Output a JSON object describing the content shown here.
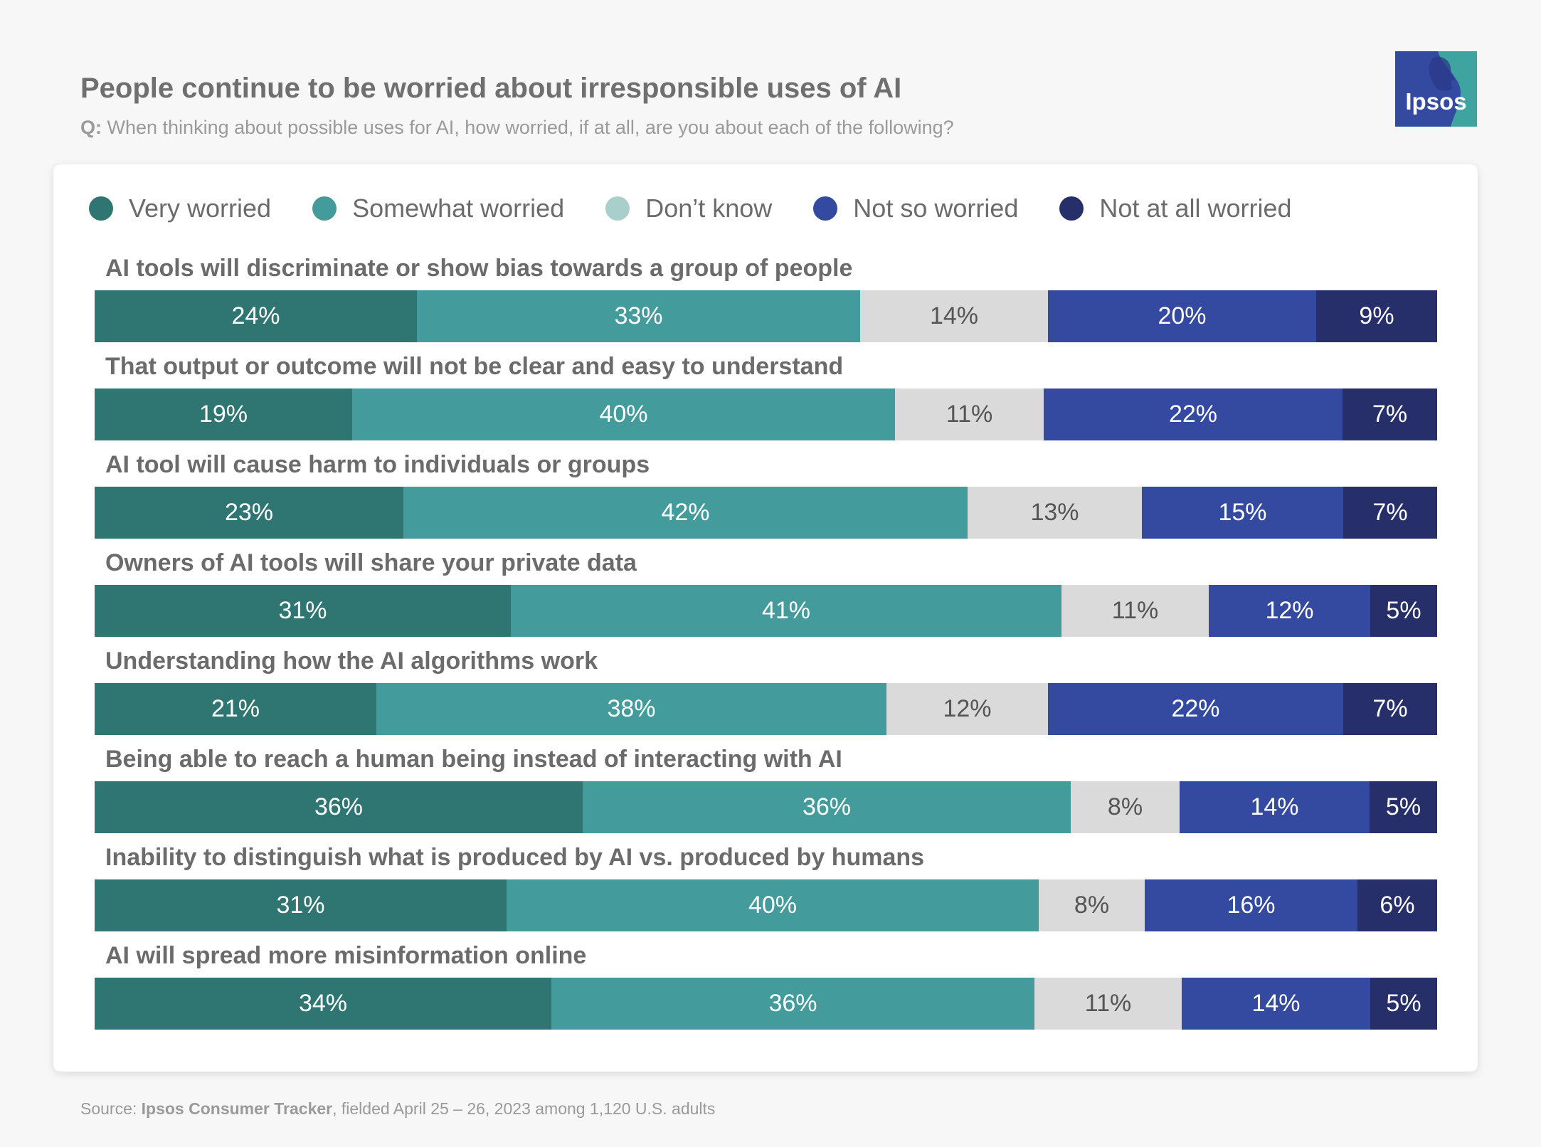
{
  "header": {
    "title": "People continue to be worried about irresponsible uses of AI",
    "question_prefix": "Q:",
    "question": " When thinking about possible uses for AI, how worried, if at all, are you about each of the following?"
  },
  "logo": {
    "text": "Ipsos",
    "icon": "ipsos-head-icon"
  },
  "legend": [
    {
      "label": "Very worried",
      "color": "#2f7672"
    },
    {
      "label": "Somewhat worried",
      "color": "#449b9b"
    },
    {
      "label": "Don’t know",
      "color": "#a9cfcd"
    },
    {
      "label": "Not so worried",
      "color": "#344aa0"
    },
    {
      "label": "Not at all worried",
      "color": "#272f6b"
    }
  ],
  "segment_colors": [
    "#2f7672",
    "#449b9b",
    "#dadada",
    "#344aa0",
    "#272f6b"
  ],
  "segment_text_colors": [
    "#ffffff",
    "#ffffff",
    "#555555",
    "#ffffff",
    "#ffffff"
  ],
  "chart_data": {
    "type": "bar",
    "orientation": "horizontal",
    "stacked": true,
    "title": "People continue to be worried about irresponsible uses of AI",
    "value_suffix": "%",
    "categories": [
      "AI tools will discriminate or show bias towards a group of people",
      "That output or outcome will not be clear and easy to understand",
      "AI tool will cause harm to individuals or groups",
      "Owners of AI tools will share your private data",
      "Understanding how the AI algorithms work",
      "Being able to reach a human being instead of interacting with AI",
      "Inability to distinguish what is produced by AI vs. produced by humans",
      "AI will spread more misinformation online"
    ],
    "series": [
      {
        "name": "Very worried",
        "values": [
          24,
          19,
          23,
          31,
          21,
          36,
          31,
          34
        ]
      },
      {
        "name": "Somewhat worried",
        "values": [
          33,
          40,
          42,
          41,
          38,
          36,
          40,
          36
        ]
      },
      {
        "name": "Don’t know",
        "values": [
          14,
          11,
          13,
          11,
          12,
          8,
          8,
          11
        ]
      },
      {
        "name": "Not so worried",
        "values": [
          20,
          22,
          15,
          12,
          22,
          14,
          16,
          14
        ]
      },
      {
        "name": "Not at all worried",
        "values": [
          9,
          7,
          7,
          5,
          7,
          5,
          6,
          5
        ]
      }
    ]
  },
  "footer": {
    "source_prefix": "Source: ",
    "source_name": "Ipsos Consumer Tracker",
    "source_rest": ", fielded April 25 – 26, 2023 among 1,120 U.S. adults"
  }
}
